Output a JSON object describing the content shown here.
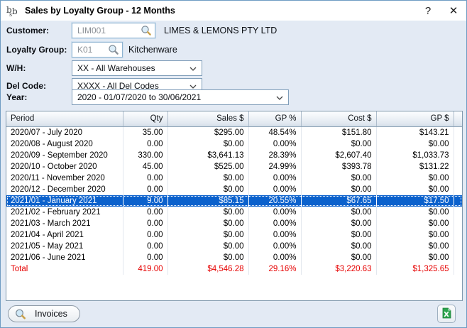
{
  "window": {
    "title": "Sales by Loyalty Group - 12 Months",
    "help_button": "?",
    "close_button": "✕"
  },
  "form": {
    "customer": {
      "label": "Customer:",
      "code": "LIM001",
      "name": "LIMES & LEMONS PTY LTD"
    },
    "loyalty_group": {
      "label": "Loyalty Group:",
      "code": "K01",
      "name": "Kitchenware"
    },
    "warehouse": {
      "label": "W/H:",
      "selected": "XX - All Warehouses"
    },
    "del_code": {
      "label": "Del Code:",
      "selected": "XXXX - All Del Codes"
    },
    "year": {
      "label": "Year:",
      "selected": "2020 - 01/07/2020 to 30/06/2021"
    }
  },
  "table": {
    "columns": [
      "Period",
      "Qty",
      "Sales $",
      "GP %",
      "Cost $",
      "GP $"
    ],
    "selected_row_index": 6,
    "rows": [
      [
        "2020/07 - July 2020",
        "35.00",
        "$295.00",
        "48.54%",
        "$151.80",
        "$143.21"
      ],
      [
        "2020/08 - August 2020",
        "0.00",
        "$0.00",
        "0.00%",
        "$0.00",
        "$0.00"
      ],
      [
        "2020/09 - September 2020",
        "330.00",
        "$3,641.13",
        "28.39%",
        "$2,607.40",
        "$1,033.73"
      ],
      [
        "2020/10 - October 2020",
        "45.00",
        "$525.00",
        "24.99%",
        "$393.78",
        "$131.22"
      ],
      [
        "2020/11 - November 2020",
        "0.00",
        "$0.00",
        "0.00%",
        "$0.00",
        "$0.00"
      ],
      [
        "2020/12 - December 2020",
        "0.00",
        "$0.00",
        "0.00%",
        "$0.00",
        "$0.00"
      ],
      [
        "2021/01 - January 2021",
        "9.00",
        "$85.15",
        "20.55%",
        "$67.65",
        "$17.50"
      ],
      [
        "2021/02 - February 2021",
        "0.00",
        "$0.00",
        "0.00%",
        "$0.00",
        "$0.00"
      ],
      [
        "2021/03 - March 2021",
        "0.00",
        "$0.00",
        "0.00%",
        "$0.00",
        "$0.00"
      ],
      [
        "2021/04 - April 2021",
        "0.00",
        "$0.00",
        "0.00%",
        "$0.00",
        "$0.00"
      ],
      [
        "2021/05 - May 2021",
        "0.00",
        "$0.00",
        "0.00%",
        "$0.00",
        "$0.00"
      ],
      [
        "2021/06 - June 2021",
        "0.00",
        "$0.00",
        "0.00%",
        "$0.00",
        "$0.00"
      ]
    ],
    "total_row": [
      "Total",
      "419.00",
      "$4,546.28",
      "29.16%",
      "$3,220.63",
      "$1,325.65"
    ]
  },
  "footer": {
    "invoices_button": "Invoices"
  },
  "colors": {
    "selection": "#0b61cc",
    "total_text": "#e60000",
    "dialog_bg": "#e3eaf4",
    "title_bg": "#ffffff",
    "window_border": "#6f9cc3"
  }
}
